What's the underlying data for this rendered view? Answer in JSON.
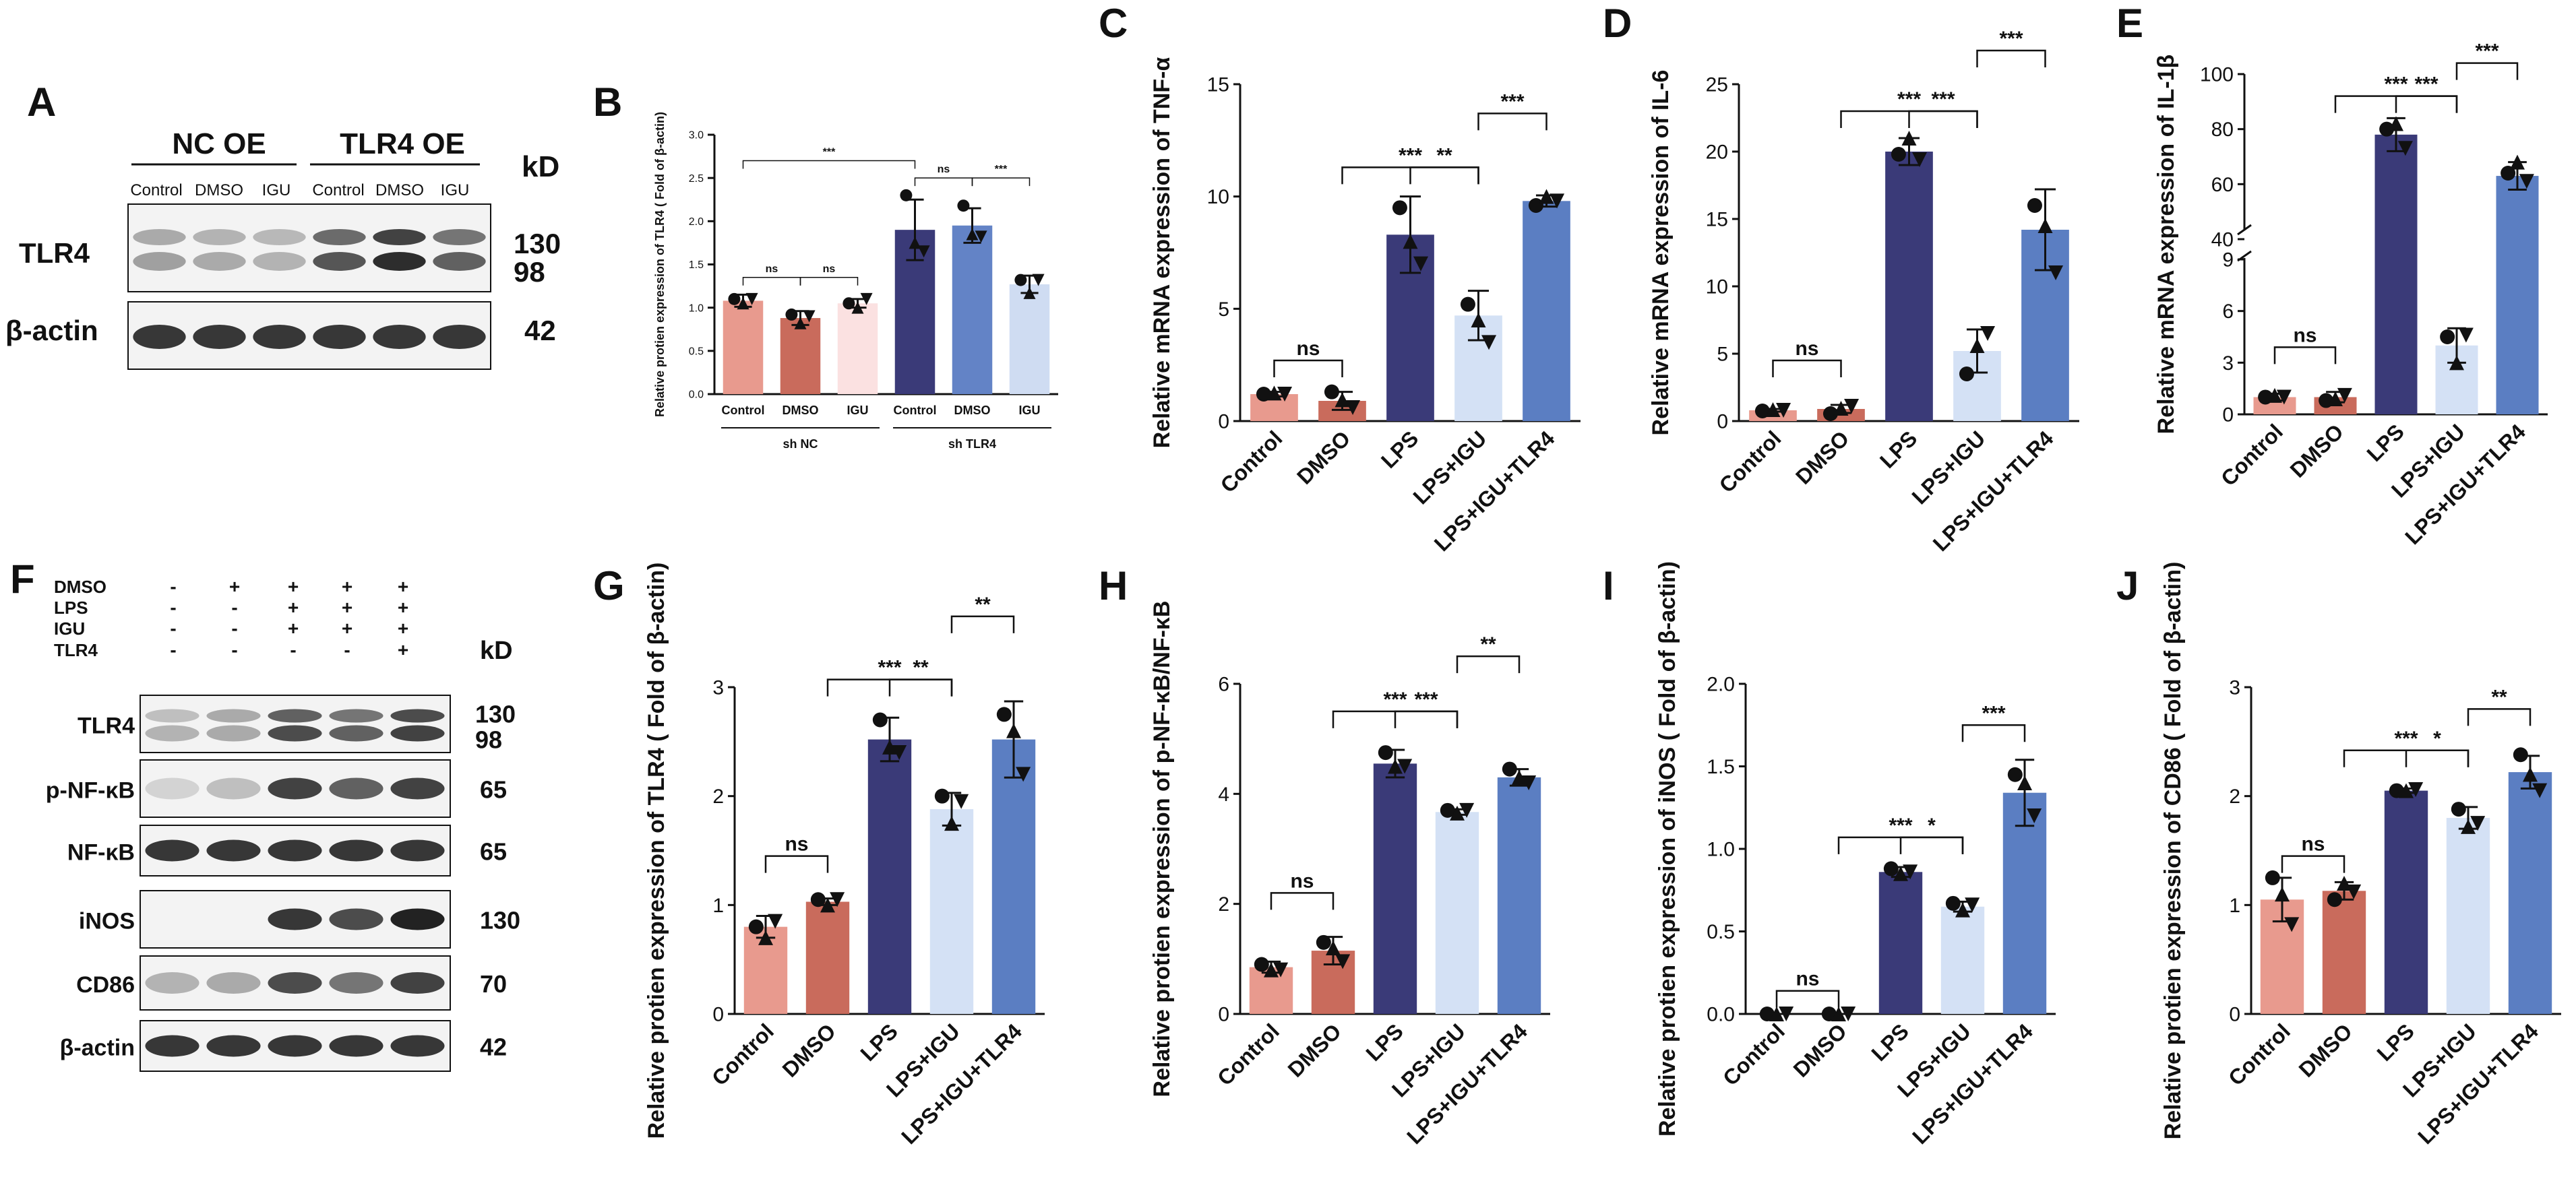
{
  "panels": {
    "A": "A",
    "B": "B",
    "C": "C",
    "D": "D",
    "E": "E",
    "F": "F",
    "G": "G",
    "H": "H",
    "I": "I",
    "J": "J"
  },
  "blots": {
    "A": {
      "group1": "NC OE",
      "group2": "TLR4 OE",
      "lanes": [
        "Control",
        "DMSO",
        "IGU",
        "Control",
        "DMSO",
        "IGU"
      ],
      "kd_header": "kD",
      "rows": [
        {
          "label": "TLR4",
          "kd": [
            "130",
            "98"
          ]
        },
        {
          "label": "β-actin",
          "kd": [
            "42"
          ]
        }
      ]
    },
    "F": {
      "conditions": [
        {
          "name": "DMSO",
          "signs": [
            "-",
            "+",
            "+",
            "+",
            "+"
          ]
        },
        {
          "name": "LPS",
          "signs": [
            "-",
            "-",
            "+",
            "+",
            "+"
          ]
        },
        {
          "name": "IGU",
          "signs": [
            "-",
            "-",
            "+",
            "+",
            "+"
          ]
        },
        {
          "name": "TLR4",
          "signs": [
            "-",
            "-",
            "-",
            "-",
            "+"
          ]
        }
      ],
      "kd_header": "kD",
      "rows": [
        {
          "label": "TLR4",
          "kd": [
            "130",
            "98"
          ]
        },
        {
          "label": "p-NF-κB",
          "kd": [
            "65"
          ]
        },
        {
          "label": "NF-κB",
          "kd": [
            "65"
          ]
        },
        {
          "label": "iNOS",
          "kd": [
            "130"
          ]
        },
        {
          "label": "CD86",
          "kd": [
            "70"
          ]
        },
        {
          "label": "β-actin",
          "kd": [
            "42"
          ]
        }
      ]
    }
  },
  "colors": {
    "control": "#e89a8e",
    "dmso": "#c96b5c",
    "lps": "#3a3a78",
    "lps_igu": "#d4e1f5",
    "lps_igu_tlr4": "#5b7ec2",
    "igu_light": "#fbe1e1",
    "dmso_blue": "#6383c6",
    "igu_blue": "#cfdcf2",
    "blot_bg": "#f3f3f3",
    "blot_band": "#222222"
  },
  "chart_data": [
    {
      "id": "B",
      "type": "bar",
      "categories": [
        "Control",
        "DMSO",
        "IGU",
        "Control",
        "DMSO",
        "IGU"
      ],
      "groups": [
        {
          "label": "sh NC",
          "from": 0,
          "to": 2
        },
        {
          "label": "sh TLR4",
          "from": 3,
          "to": 5
        }
      ],
      "values": [
        1.08,
        0.88,
        1.05,
        1.9,
        1.95,
        1.27
      ],
      "errors": [
        0.07,
        0.08,
        0.05,
        0.35,
        0.2,
        0.1
      ],
      "points": [
        [
          1.1,
          1.05,
          1.1
        ],
        [
          0.92,
          0.82,
          0.9
        ],
        [
          1.05,
          1.0,
          1.1
        ],
        [
          2.3,
          1.75,
          1.65
        ],
        [
          2.18,
          1.85,
          1.82
        ],
        [
          1.32,
          1.17,
          1.32
        ]
      ],
      "colors": [
        "#e89a8e",
        "#c96b5c",
        "#fbe1e1",
        "#3a3a78",
        "#6383c6",
        "#cfdcf2"
      ],
      "ylabel": "Relative protien expression of TLR4 ( Fold of β-actin)",
      "ylim": [
        0,
        3.0
      ],
      "yticks": [
        "0.0",
        "0.5",
        "1.0",
        "1.5",
        "2.0",
        "2.5",
        "3.0"
      ],
      "sig": [
        {
          "from": 0,
          "to": 1,
          "text": "ns",
          "y": 1.35
        },
        {
          "from": 1,
          "to": 2,
          "text": "ns",
          "y": 1.35
        },
        {
          "from": 0,
          "to": 3,
          "text": "***",
          "y": 2.7
        },
        {
          "from": 3,
          "to": 4,
          "text": "ns",
          "y": 2.5
        },
        {
          "from": 4,
          "to": 5,
          "text": "***",
          "y": 2.5
        }
      ]
    },
    {
      "id": "C",
      "type": "bar",
      "categories": [
        "Control",
        "DMSO",
        "LPS",
        "LPS+IGU",
        "LPS+IGU+TLR4"
      ],
      "values": [
        1.2,
        0.9,
        8.3,
        4.7,
        9.8
      ],
      "errors": [
        0.1,
        0.4,
        1.7,
        1.1,
        0.25
      ],
      "points": [
        [
          1.2,
          1.25,
          1.2
        ],
        [
          1.3,
          0.95,
          0.6
        ],
        [
          9.5,
          8.0,
          7.0
        ],
        [
          5.2,
          4.5,
          3.5
        ],
        [
          9.6,
          10.0,
          9.8
        ]
      ],
      "ylabel": "Relative mRNA expression of TNF-α",
      "ylim": [
        0,
        15
      ],
      "yticks": [
        "0",
        "5",
        "10",
        "15"
      ],
      "sig": [
        {
          "from": 0,
          "to": 1,
          "text": "ns",
          "y": 2.7
        },
        {
          "from": 1,
          "to": 3,
          "text": "***",
          "y": 11.3
        },
        {
          "from": 2,
          "to": 3,
          "text": "**",
          "y": 11.3
        },
        {
          "from": 3,
          "to": 4,
          "text": "***",
          "y": 13.7
        }
      ]
    },
    {
      "id": "D",
      "type": "bar",
      "categories": [
        "Control",
        "DMSO",
        "LPS",
        "LPS+IGU",
        "LPS+IGU+TLR4"
      ],
      "values": [
        0.8,
        0.9,
        20.0,
        5.2,
        14.2
      ],
      "errors": [
        0.1,
        0.3,
        1.0,
        1.6,
        3.0
      ],
      "points": [
        [
          0.75,
          0.85,
          0.8
        ],
        [
          0.55,
          0.95,
          1.1
        ],
        [
          19.8,
          21.0,
          19.4
        ],
        [
          3.5,
          5.6,
          6.5
        ],
        [
          16.0,
          14.5,
          11.0
        ]
      ],
      "ylabel": "Relative mRNA expression of IL-6",
      "ylim": [
        0,
        25
      ],
      "yticks": [
        "0",
        "5",
        "10",
        "15",
        "20",
        "25"
      ],
      "sig": [
        {
          "from": 0,
          "to": 1,
          "text": "ns",
          "y": 4.5
        },
        {
          "from": 1,
          "to": 3,
          "text": "***",
          "y": 23.0
        },
        {
          "from": 2,
          "to": 3,
          "text": "***",
          "y": 23.0
        },
        {
          "from": 3,
          "to": 4,
          "text": "***",
          "y": 27.5
        }
      ]
    },
    {
      "id": "E",
      "type": "bar",
      "broken_axis": true,
      "categories": [
        "Control",
        "DMSO",
        "LPS",
        "LPS+IGU",
        "LPS+IGU+TLR4"
      ],
      "values": [
        1.0,
        1.0,
        78.0,
        4.0,
        63.0
      ],
      "errors": [
        0.2,
        0.3,
        6.0,
        1.0,
        5.0
      ],
      "points": [
        [
          1.0,
          1.1,
          1.0
        ],
        [
          0.8,
          0.9,
          1.1
        ],
        [
          80.0,
          82.0,
          73.0
        ],
        [
          4.5,
          3.0,
          4.6
        ],
        [
          64.0,
          68.0,
          61.0
        ]
      ],
      "ylabel": "Relative mRNA expression of IL-1β",
      "ylim": [
        0,
        100
      ],
      "yticks": [
        "0",
        "3",
        "6",
        "9",
        "40",
        "60",
        "80",
        "100"
      ],
      "sig": [
        {
          "from": 0,
          "to": 1,
          "text": "ns",
          "y": 3.9
        },
        {
          "from": 1,
          "to": 3,
          "text": "***",
          "y": 92.0
        },
        {
          "from": 2,
          "to": 3,
          "text": "***",
          "y": 92.0
        },
        {
          "from": 3,
          "to": 4,
          "text": "***",
          "y": 104.0
        }
      ]
    },
    {
      "id": "G",
      "type": "bar",
      "categories": [
        "Control",
        "DMSO",
        "LPS",
        "LPS+IGU",
        "LPS+IGU+TLR4"
      ],
      "values": [
        0.8,
        1.03,
        2.52,
        1.88,
        2.52
      ],
      "errors": [
        0.1,
        0.03,
        0.2,
        0.15,
        0.35
      ],
      "points": [
        [
          0.8,
          0.7,
          0.85
        ],
        [
          1.05,
          1.0,
          1.05
        ],
        [
          2.7,
          2.45,
          2.4
        ],
        [
          2.0,
          1.75,
          1.95
        ],
        [
          2.75,
          2.6,
          2.2
        ]
      ],
      "ylabel": "Relative protien expression of TLR4 ( Fold of β-actin)",
      "ylim": [
        0,
        3
      ],
      "yticks": [
        "0",
        "1",
        "2",
        "3"
      ],
      "sig": [
        {
          "from": 0,
          "to": 1,
          "text": "ns",
          "y": 1.45
        },
        {
          "from": 1,
          "to": 3,
          "text": "***",
          "y": 3.07
        },
        {
          "from": 2,
          "to": 3,
          "text": "**",
          "y": 3.07
        },
        {
          "from": 3,
          "to": 4,
          "text": "**",
          "y": 3.65
        }
      ]
    },
    {
      "id": "H",
      "type": "bar",
      "categories": [
        "Control",
        "DMSO",
        "LPS",
        "LPS+IGU",
        "LPS+IGU+TLR4"
      ],
      "values": [
        0.85,
        1.15,
        4.55,
        3.67,
        4.3
      ],
      "errors": [
        0.1,
        0.25,
        0.25,
        0.05,
        0.15
      ],
      "points": [
        [
          0.9,
          0.8,
          0.8
        ],
        [
          1.3,
          1.2,
          0.95
        ],
        [
          4.75,
          4.5,
          4.5
        ],
        [
          3.7,
          3.65,
          3.7
        ],
        [
          4.45,
          4.3,
          4.2
        ]
      ],
      "ylabel": "Relative protien expression of p-NF-κB/NF-κB",
      "ylim": [
        0,
        6
      ],
      "yticks": [
        "0",
        "2",
        "4",
        "6"
      ],
      "sig": [
        {
          "from": 0,
          "to": 1,
          "text": "ns",
          "y": 2.2
        },
        {
          "from": 1,
          "to": 3,
          "text": "***",
          "y": 5.5
        },
        {
          "from": 2,
          "to": 3,
          "text": "***",
          "y": 5.5
        },
        {
          "from": 3,
          "to": 4,
          "text": "**",
          "y": 6.5
        }
      ]
    },
    {
      "id": "I",
      "type": "bar",
      "categories": [
        "Control",
        "DMSO",
        "LPS",
        "LPS+IGU",
        "LPS+IGU+TLR4"
      ],
      "values": [
        0.0,
        0.0,
        0.86,
        0.65,
        1.34
      ],
      "errors": [
        0.0,
        0.0,
        0.03,
        0.03,
        0.2
      ],
      "points": [
        [
          0.0,
          0.0,
          0.0
        ],
        [
          0.0,
          0.0,
          0.0
        ],
        [
          0.88,
          0.85,
          0.86
        ],
        [
          0.67,
          0.63,
          0.66
        ],
        [
          1.45,
          1.4,
          1.2
        ]
      ],
      "ylabel": "Relative protien expression of iNOS ( Fold of β-actin)",
      "ylim": [
        0,
        2.0
      ],
      "yticks": [
        "0.0",
        "0.5",
        "1.0",
        "1.5",
        "2.0"
      ],
      "sig": [
        {
          "from": 0,
          "to": 1,
          "text": "ns",
          "y": 0.14
        },
        {
          "from": 1,
          "to": 3,
          "text": "***",
          "y": 1.07
        },
        {
          "from": 2,
          "to": 3,
          "text": "*",
          "y": 1.07
        },
        {
          "from": 3,
          "to": 4,
          "text": "***",
          "y": 1.75
        }
      ]
    },
    {
      "id": "J",
      "type": "bar",
      "categories": [
        "Control",
        "DMSO",
        "LPS",
        "LPS+IGU",
        "LPS+IGU+TLR4"
      ],
      "values": [
        1.05,
        1.13,
        2.05,
        1.8,
        2.22
      ],
      "errors": [
        0.2,
        0.08,
        0.02,
        0.1,
        0.15
      ],
      "points": [
        [
          1.25,
          1.1,
          0.82
        ],
        [
          1.05,
          1.2,
          1.12
        ],
        [
          2.05,
          2.05,
          2.06
        ],
        [
          1.88,
          1.72,
          1.75
        ],
        [
          2.38,
          2.2,
          2.05
        ]
      ],
      "ylabel": "Relative protien expression of CD86 ( Fold of β-actin)",
      "ylim": [
        0,
        3
      ],
      "yticks": [
        "0",
        "1",
        "2",
        "3"
      ],
      "sig": [
        {
          "from": 0,
          "to": 1,
          "text": "ns",
          "y": 1.45
        },
        {
          "from": 1,
          "to": 3,
          "text": "***",
          "y": 2.42
        },
        {
          "from": 2,
          "to": 3,
          "text": "*",
          "y": 2.42
        },
        {
          "from": 3,
          "to": 4,
          "text": "**",
          "y": 2.8
        }
      ]
    }
  ]
}
